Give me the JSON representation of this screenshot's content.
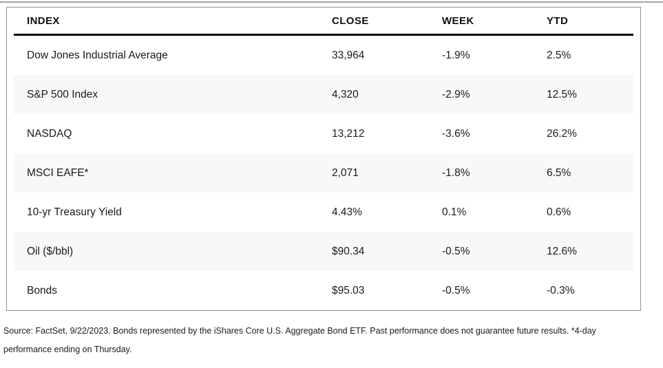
{
  "chart_data": {
    "type": "table",
    "columns": [
      "INDEX",
      "CLOSE",
      "WEEK",
      "YTD"
    ],
    "rows": [
      [
        "Dow Jones Industrial Average",
        "33,964",
        "-1.9%",
        "2.5%"
      ],
      [
        "S&P 500 Index",
        "4,320",
        "-2.9%",
        "12.5%"
      ],
      [
        "NASDAQ",
        "13,212",
        "-3.6%",
        "26.2%"
      ],
      [
        "MSCI EAFE*",
        "2,071",
        "-1.8%",
        "6.5%"
      ],
      [
        "10-yr Treasury Yield",
        "4.43%",
        "0.1%",
        "0.6%"
      ],
      [
        "Oil ($/bbl)",
        "$90.34",
        "-0.5%",
        "12.6%"
      ],
      [
        "Bonds",
        "$95.03",
        "-0.5%",
        "-0.3%"
      ]
    ],
    "footnote": "Source: FactSet, 9/22/2023. Bonds represented by the iShares Core U.S. Aggregate Bond ETF. Past performance does not guarantee future results. *4-day performance ending on Thursday.",
    "layout_hints": {
      "striped_rows": "even rows shaded",
      "alignment": "all columns left-aligned",
      "header_rule": "thick black line under header, inset from table border"
    }
  },
  "colors": {
    "table_border": "#97908a",
    "header_rule": "#000000",
    "row_stripe": "#f8f8f8",
    "text": "#1a1a1a",
    "page_top_rule": "#a3a3a3"
  }
}
